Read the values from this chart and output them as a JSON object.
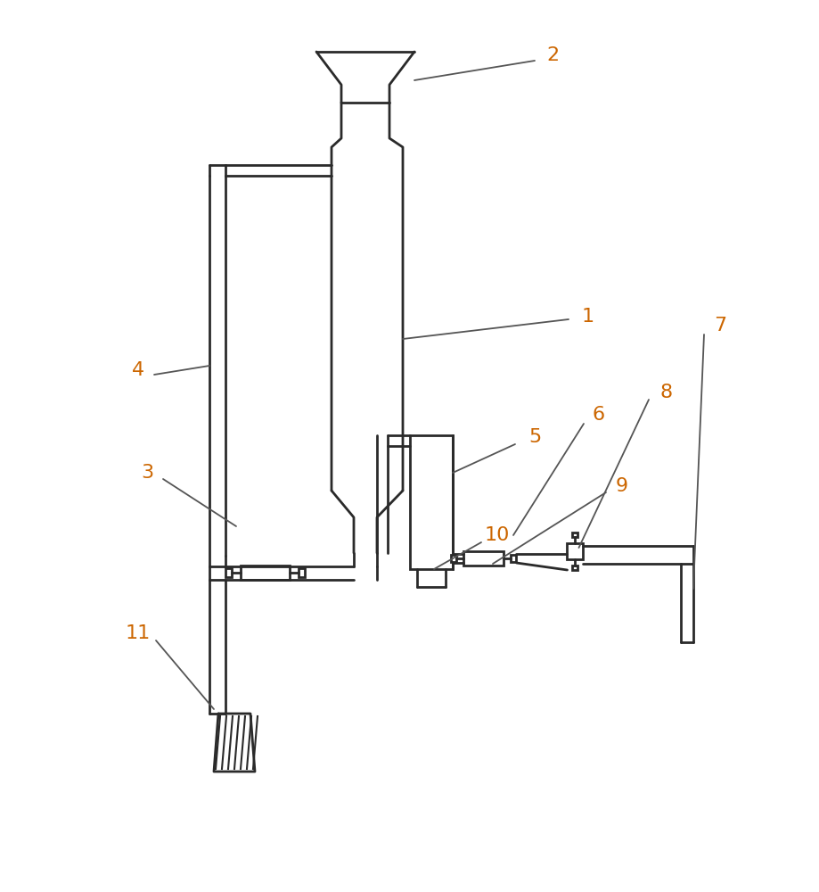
{
  "bg_color": "#ffffff",
  "line_color": "#2a2a2a",
  "label_color": "#cc6600",
  "line_width": 2.0,
  "figsize": [
    9.2,
    10.0
  ],
  "dpi": 100
}
